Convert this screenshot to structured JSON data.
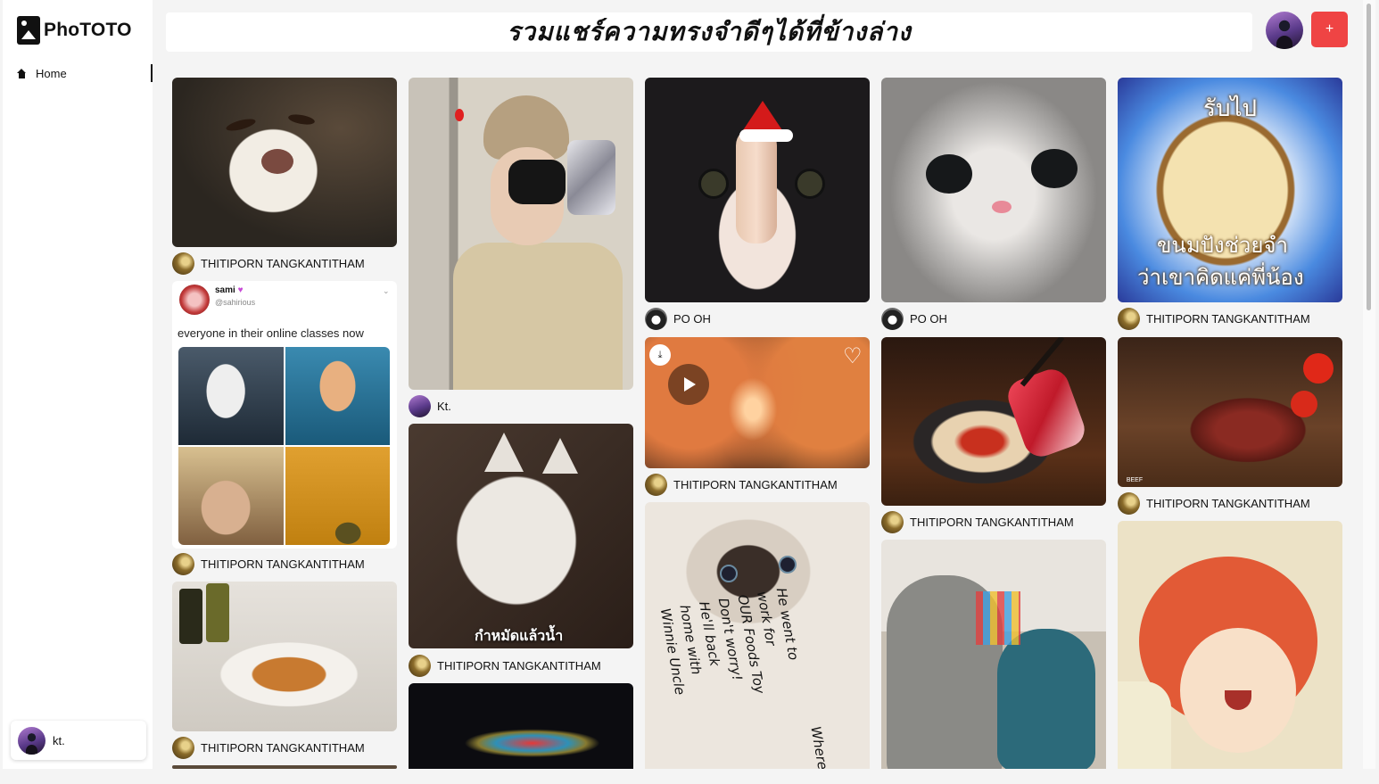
{
  "app": {
    "name": "PhoTOTO"
  },
  "sidebar": {
    "home_label": "Home",
    "user_name": "kt."
  },
  "header": {
    "title": "รวมแชร์ความทรงจำดีๆได้ที่ข้างล่าง",
    "add_label": "+"
  },
  "meme": {
    "user": "sami",
    "handle": "@sahirious",
    "caption": "everyone in their online classes now"
  },
  "pins": {
    "dog": {
      "author": "THITIPORN TANGKANTITHAM"
    },
    "meme": {
      "author": "THITIPORN TANGKANTITHAM"
    },
    "crab": {
      "author": "THITIPORN TANGKANTITHAM"
    },
    "girl": {
      "author": "Kt."
    },
    "whitecat": {
      "author": "THITIPORN TANGKANTITHAM",
      "caption": "กำหมัดแล้วน้ำ"
    },
    "santacat": {
      "author": "PO OH"
    },
    "street": {
      "author": "THITIPORN TANGKANTITHAM"
    },
    "kitten": {
      "author": "PO OH"
    },
    "shabu": {
      "author": "THITIPORN TANGKANTITHAM"
    },
    "bread": {
      "author": "THITIPORN TANGKANTITHAM",
      "top_text": "รับไป",
      "bottom_text_1": "ขนมปังช่วยจำ",
      "bottom_text_2": "ว่าเขาคิดแค่พี่น้อง"
    },
    "steak": {
      "author": "THITIPORN TANGKANTITHAM",
      "logo_text": "BEEF"
    },
    "siamese": {
      "note_1": "He went to",
      "note_2": "work for",
      "note_3": "OUR Foods Toy",
      "note_4": "Don't worry!",
      "note_5": "He'll back",
      "note_6": "home with",
      "note_7": "Winnie Uncle",
      "note_8": "Where's"
    }
  },
  "colors": {
    "accent": "#ef4444",
    "background": "#f4f4f4",
    "card": "#ffffff"
  },
  "icons": {
    "home": "home-icon",
    "play": "play-icon",
    "download": "download-icon",
    "heart": "heart-icon",
    "verified": "heart-badge-icon",
    "chevron": "chevron-down-icon"
  }
}
